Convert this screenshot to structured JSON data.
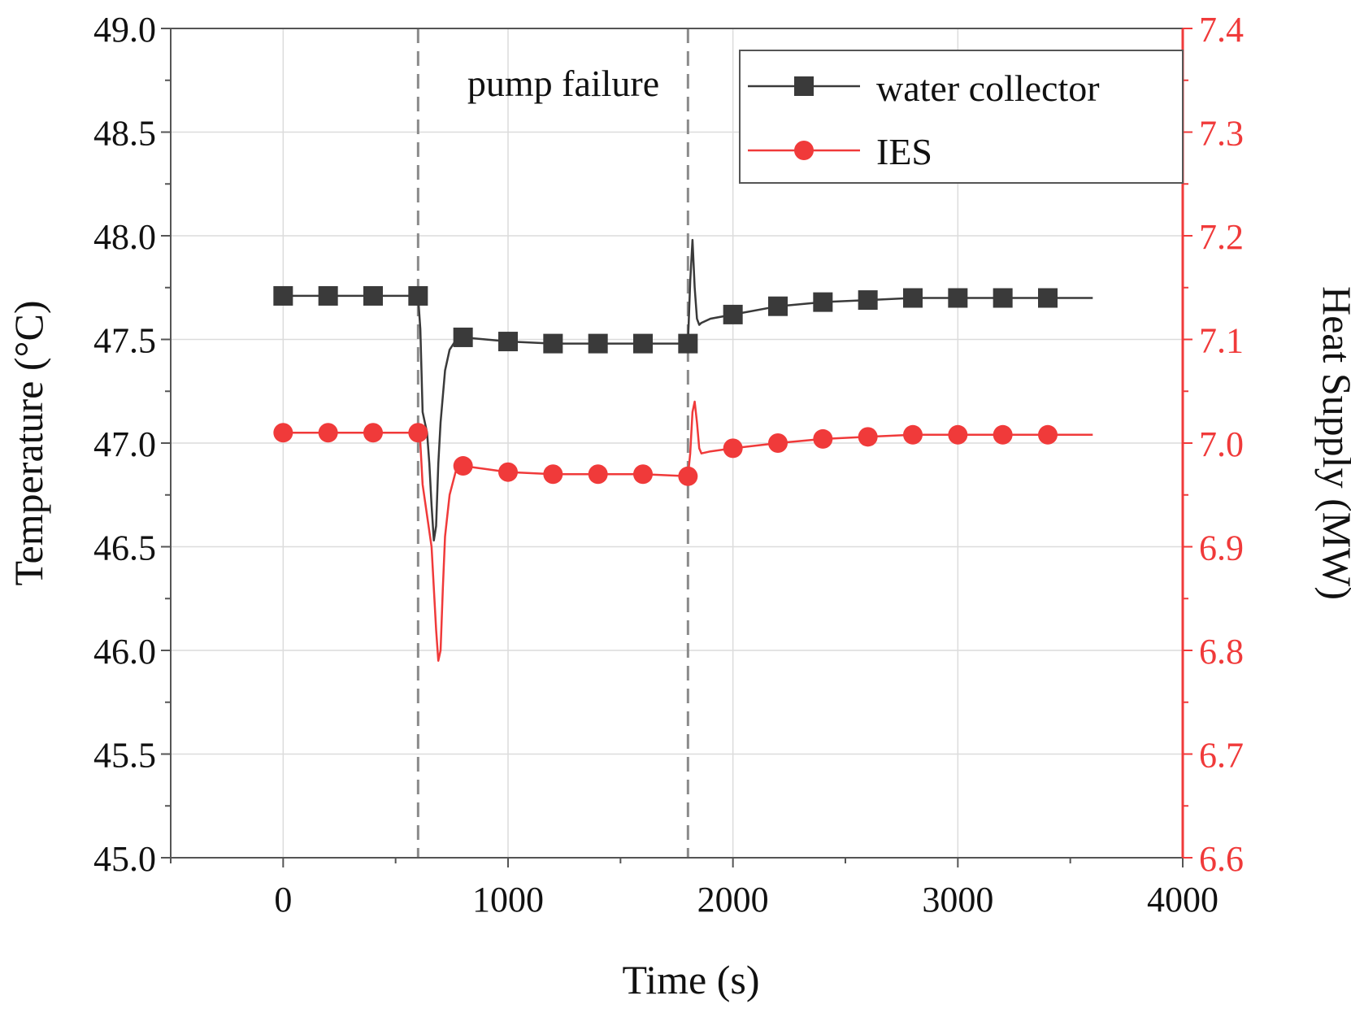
{
  "chart_data": {
    "type": "line",
    "xlabel": "Time (s)",
    "ylabel_left": "Temperature (°C)",
    "ylabel_right": "Heat Supply (MW)",
    "xlim": [
      -500,
      4000
    ],
    "ylim_left": [
      45.0,
      49.0
    ],
    "ylim_right": [
      6.6,
      7.4
    ],
    "x_ticks": [
      "0",
      "1000",
      "2000",
      "3000",
      "4000"
    ],
    "x_tick_values": [
      0,
      1000,
      2000,
      3000,
      4000
    ],
    "y_left_ticks": [
      "45.0",
      "45.5",
      "46.0",
      "46.5",
      "47.0",
      "47.5",
      "48.0",
      "48.5",
      "49.0"
    ],
    "y_left_tick_values": [
      45.0,
      45.5,
      46.0,
      46.5,
      47.0,
      47.5,
      48.0,
      48.5,
      49.0
    ],
    "y_right_ticks": [
      "6.6",
      "6.7",
      "6.8",
      "6.9",
      "7.0",
      "7.1",
      "7.2",
      "7.3",
      "7.4"
    ],
    "y_right_tick_values": [
      6.6,
      6.7,
      6.8,
      6.9,
      7.0,
      7.1,
      7.2,
      7.3,
      7.4
    ],
    "grid": true,
    "annotation": "pump failure",
    "event_lines_x": [
      600,
      1800
    ],
    "series": [
      {
        "name": "water collector",
        "axis": "left",
        "color": "#3a3a3a",
        "marker": "square",
        "x": [
          0,
          200,
          400,
          600,
          610,
          620,
          630,
          640,
          650,
          660,
          670,
          680,
          690,
          700,
          720,
          740,
          770,
          800,
          900,
          1000,
          1200,
          1400,
          1600,
          1800,
          1810,
          1820,
          1830,
          1840,
          1850,
          1860,
          1900,
          2000,
          2200,
          2400,
          2600,
          2800,
          3000,
          3200,
          3400,
          3600
        ],
        "values": [
          47.71,
          47.71,
          47.71,
          47.71,
          47.55,
          47.15,
          47.1,
          47.05,
          46.9,
          46.7,
          46.53,
          46.6,
          46.9,
          47.1,
          47.35,
          47.45,
          47.5,
          47.51,
          47.5,
          47.49,
          47.48,
          47.48,
          47.48,
          47.48,
          47.78,
          47.98,
          47.75,
          47.6,
          47.57,
          47.58,
          47.6,
          47.62,
          47.66,
          47.68,
          47.69,
          47.7,
          47.7,
          47.7,
          47.7,
          47.7
        ],
        "marker_x": [
          0,
          200,
          400,
          600,
          800,
          1000,
          1200,
          1400,
          1600,
          1800,
          2000,
          2200,
          2400,
          2600,
          2800,
          3000,
          3200,
          3400
        ]
      },
      {
        "name": "IES",
        "axis": "right",
        "color": "#f03a3a",
        "marker": "circle",
        "x": [
          0,
          200,
          400,
          600,
          610,
          620,
          640,
          660,
          680,
          690,
          700,
          710,
          720,
          740,
          770,
          800,
          900,
          1000,
          1200,
          1400,
          1600,
          1800,
          1810,
          1820,
          1830,
          1840,
          1850,
          1860,
          1900,
          2000,
          2200,
          2400,
          2600,
          2800,
          3000,
          3200,
          3400,
          3600
        ],
        "values": [
          7.01,
          7.01,
          7.01,
          7.01,
          7.0,
          6.96,
          6.93,
          6.9,
          6.82,
          6.79,
          6.8,
          6.86,
          6.91,
          6.95,
          6.975,
          6.978,
          6.975,
          6.972,
          6.97,
          6.97,
          6.97,
          6.968,
          6.99,
          7.03,
          7.04,
          7.02,
          6.995,
          6.99,
          6.992,
          6.995,
          7.0,
          7.004,
          7.006,
          7.008,
          7.008,
          7.008,
          7.008,
          7.008
        ],
        "marker_x": [
          0,
          200,
          400,
          600,
          800,
          1000,
          1200,
          1400,
          1600,
          1800,
          2000,
          2200,
          2400,
          2600,
          2800,
          3000,
          3200,
          3400
        ]
      }
    ]
  },
  "colors": {
    "water_collector": "#3a3a3a",
    "ies": "#f03a3a",
    "right_axis": "#f03a3a",
    "grid": "#dcdcdc",
    "event_line": "#8a8a8a"
  }
}
